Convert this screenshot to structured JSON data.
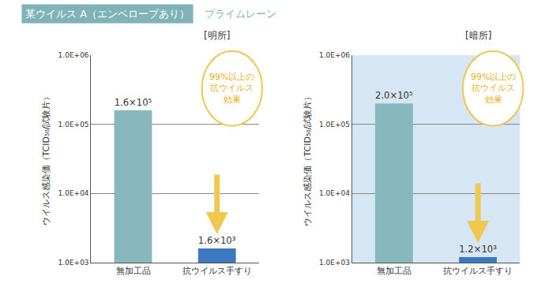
{
  "header": {
    "title": "某ウイルス A（エンベロープあり）",
    "subtitle": "プライムレーン"
  },
  "chart_data": [
    {
      "type": "bar",
      "title": "[明所]",
      "categories": [
        "無加工品",
        "抗ウイルス手すり"
      ],
      "values": [
        160000,
        1600
      ],
      "value_labels": [
        "1.6×10⁵",
        "1.6×10³"
      ],
      "data_labels": true,
      "colors": [
        "#86b8bd",
        "#3c78be"
      ],
      "log": "y",
      "ylim": [
        1000,
        1000000
      ],
      "yticks": [
        {
          "value": 1000,
          "label": "1.0E+03"
        },
        {
          "value": 10000,
          "label": "1.0E+04"
        },
        {
          "value": 100000,
          "label": "1.0E+05"
        },
        {
          "value": 1000000,
          "label": "1.0E+06"
        }
      ],
      "ylabel": "ウイルス感染価（TCID₅₀/試験片）",
      "grid": true,
      "annotation": [
        "99%以上の",
        "抗ウイルス",
        "効果"
      ]
    },
    {
      "type": "bar",
      "title": "[暗所]",
      "categories": [
        "無加工品",
        "抗ウイルス手すり"
      ],
      "values": [
        200000,
        1200
      ],
      "value_labels": [
        "2.0×10⁵",
        "1.2×10³"
      ],
      "data_labels": true,
      "colors": [
        "#86b8bd",
        "#3c78be"
      ],
      "log": "y",
      "ylim": [
        1000,
        1000000
      ],
      "yticks": [
        {
          "value": 1000,
          "label": "1.0E+03"
        },
        {
          "value": 10000,
          "label": "1.0E+04"
        },
        {
          "value": 100000,
          "label": "1.0E+05"
        },
        {
          "value": 1000000,
          "label": "1.0E+06"
        }
      ],
      "ylabel": "ウイルス感染価（TCID₅₀/試験片）",
      "grid": true,
      "annotation": [
        "99%以上の",
        "抗ウイルス",
        "効果"
      ]
    }
  ]
}
